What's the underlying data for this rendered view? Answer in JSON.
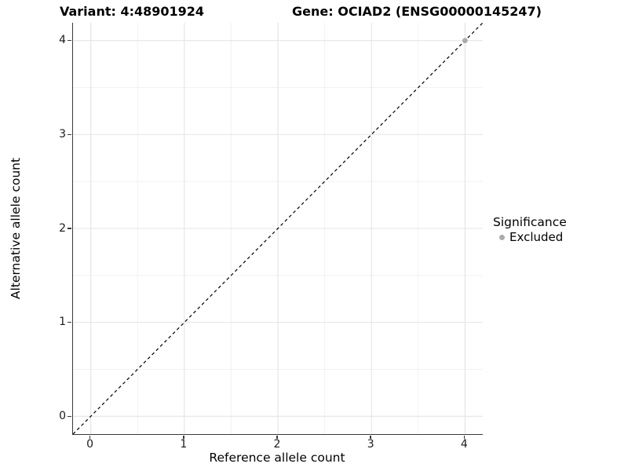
{
  "chart_data": {
    "type": "scatter",
    "title_left": "Variant: 4:48901924",
    "title_right": "Gene: OCIAD2 (ENSG00000145247)",
    "xlabel": "Reference allele count",
    "ylabel": "Alternative allele count",
    "xlim": [
      -0.19,
      4.19
    ],
    "ylim": [
      -0.19,
      4.19
    ],
    "xticks": [
      0,
      1,
      2,
      3,
      4
    ],
    "yticks": [
      0,
      1,
      2,
      3,
      4
    ],
    "minor_grid_step": 0.5,
    "grid": "major+minor",
    "reference_line": {
      "type": "identity y=x",
      "style": "dashed",
      "color": "#000000"
    },
    "series": [
      {
        "name": "Excluded",
        "color": "#ababab",
        "points": [
          [
            4,
            4
          ]
        ]
      }
    ],
    "legend": {
      "title": "Significance",
      "position": "right",
      "items": [
        {
          "label": "Excluded",
          "color": "#ababab"
        }
      ]
    }
  },
  "colors": {
    "background": "#ffffff",
    "grid_major": "#e4e4e4",
    "grid_minor": "#f0f0f0",
    "axis_line": "#3a3a3a",
    "tick_label": "#1a1a1a",
    "title": "#000000"
  }
}
